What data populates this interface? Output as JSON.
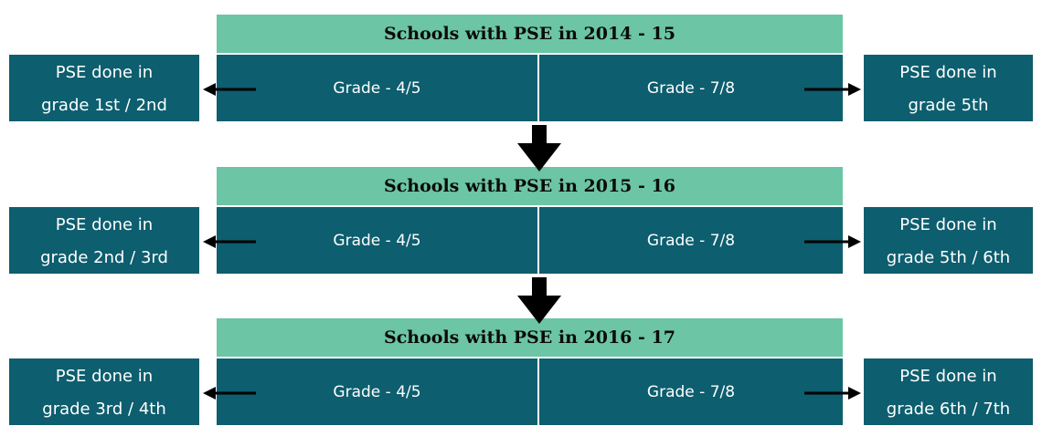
{
  "blocks": [
    {
      "header": "Schools with PSE in 2014 - 15",
      "left": [
        "PSE done in",
        "grade 1st / 2nd"
      ],
      "cells": [
        "Grade - 4/5",
        "Grade - 7/8"
      ],
      "right": [
        "PSE done in",
        "grade 5th"
      ]
    },
    {
      "header": "Schools with PSE in 2015 - 16",
      "left": [
        "PSE done in",
        "grade 2nd / 3rd"
      ],
      "cells": [
        "Grade - 4/5",
        "Grade - 7/8"
      ],
      "right": [
        "PSE done in",
        "grade 5th / 6th"
      ]
    },
    {
      "header": "Schools with PSE in 2016 - 17",
      "left": [
        "PSE done in",
        "grade 3rd / 4th"
      ],
      "cells": [
        "Grade - 4/5",
        "Grade - 7/8"
      ],
      "right": [
        "PSE done in",
        "grade 6th / 7th"
      ]
    }
  ]
}
